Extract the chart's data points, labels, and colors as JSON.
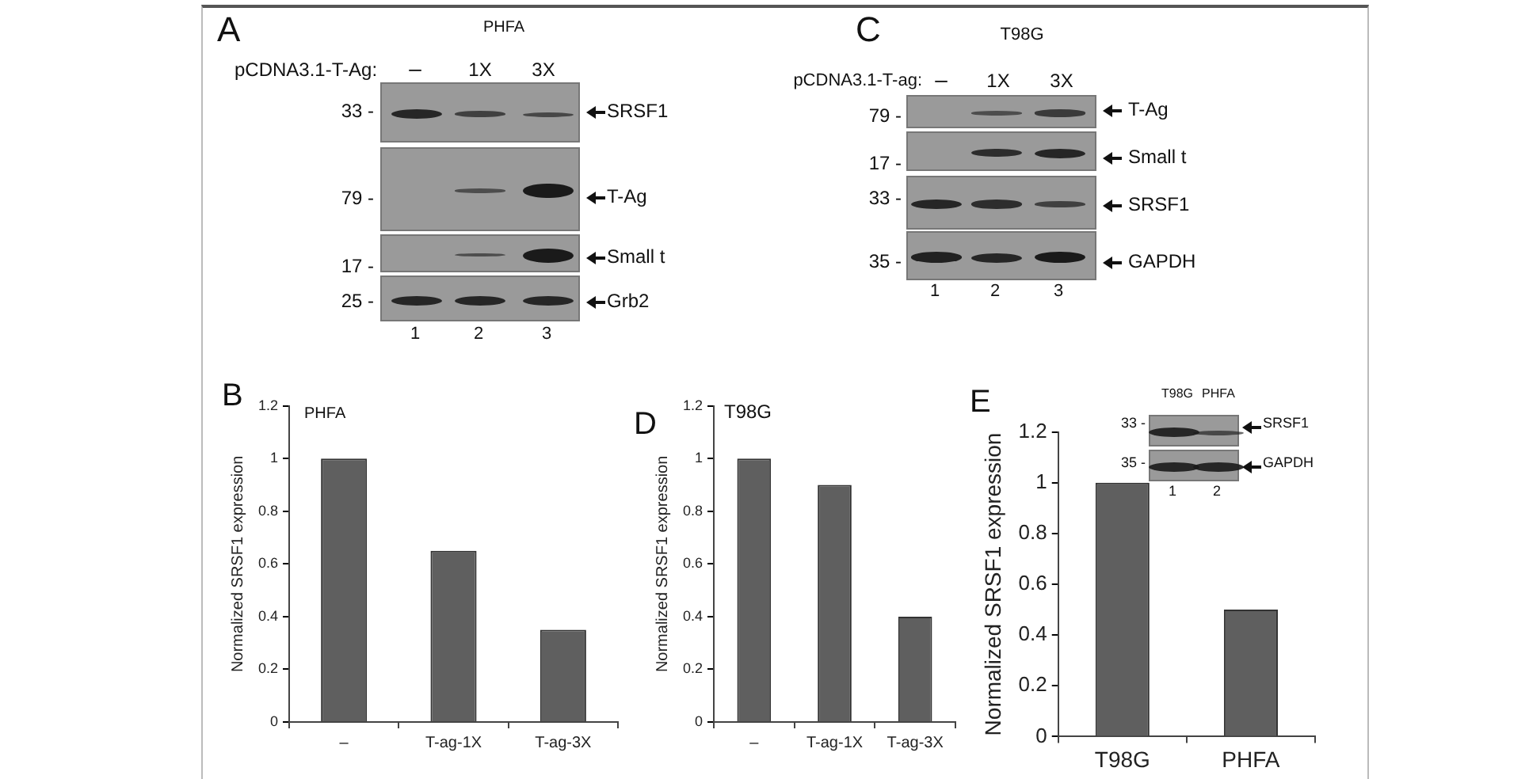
{
  "chart_data": [
    {
      "type": "other",
      "title": "PHFA",
      "annotations": [
        "A",
        "pCDNA3.1-T-Ag:",
        "–",
        "1X",
        "3X",
        "33 -",
        "79 -",
        "17 -",
        "25 -",
        "SRSF1",
        "T-Ag",
        "Small t",
        "Grb2",
        "1",
        "2",
        "3"
      ]
    },
    {
      "type": "other",
      "title": "T98G",
      "annotations": [
        "C",
        "pCDNA3.1-T-ag:",
        "–",
        "1X",
        "3X",
        "79 -",
        "17 -",
        "33 -",
        "35 -",
        "T-Ag",
        "Small t",
        "SRSF1",
        "GAPDH",
        "1",
        "2",
        "3"
      ]
    },
    {
      "type": "bar",
      "title": "PHFA",
      "ylabel": "Normalized SRSF1 expression",
      "categories": [
        "–",
        "T-ag-1X",
        "T-ag-3X"
      ],
      "values": [
        1,
        0.65,
        0.35
      ],
      "color": "#5f5f5f",
      "ylim": [
        0,
        1.2
      ],
      "yticks": [
        0,
        0.2,
        0.4,
        0.6,
        0.8,
        1,
        1.2
      ],
      "annotations": [
        "B"
      ]
    },
    {
      "type": "bar",
      "title": "T98G",
      "ylabel": "Normalized SRSF1 expression",
      "categories": [
        "–",
        "T-ag-1X",
        "T-ag-3X"
      ],
      "values": [
        1,
        0.9,
        0.4
      ],
      "color": "#5f5f5f",
      "ylim": [
        0,
        1.2
      ],
      "yticks": [
        0,
        0.2,
        0.4,
        0.6,
        0.8,
        1,
        1.2
      ],
      "annotations": [
        "D"
      ]
    },
    {
      "type": "bar",
      "ylabel": "Normalized SRSF1 expression",
      "categories": [
        "T98G",
        "PHFA"
      ],
      "values": [
        1,
        0.5
      ],
      "color": "#5f5f5f",
      "ylim": [
        0,
        1.2
      ],
      "yticks": [
        0,
        0.2,
        0.4,
        0.6,
        0.8,
        1,
        1.2
      ],
      "annotations": [
        "E",
        "T98G",
        "PHFA",
        "33 -",
        "35 -",
        "SRSF1",
        "GAPDH",
        "1",
        "2"
      ]
    }
  ]
}
